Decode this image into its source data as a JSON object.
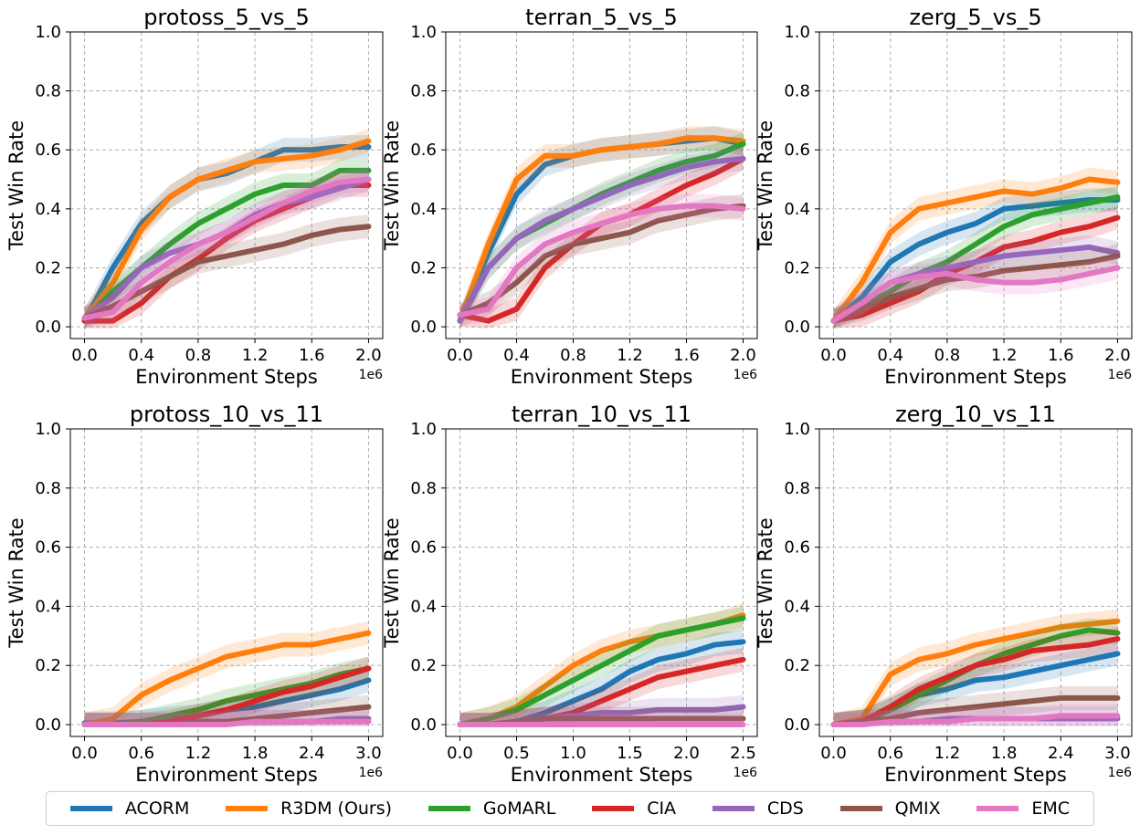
{
  "figure": {
    "colors": {
      "ACORM": "#1f77b4",
      "R3DM (Ours)": "#ff7f0e",
      "GoMARL": "#2ca02c",
      "CIA": "#d62728",
      "CDS": "#9467bd",
      "QMIX": "#8c564b",
      "EMC": "#e377c2"
    },
    "legend": [
      "ACORM",
      "R3DM (Ours)",
      "GoMARL",
      "CIA",
      "CDS",
      "QMIX",
      "EMC"
    ]
  },
  "chart_data": [
    {
      "type": "line",
      "title": "protoss_5_vs_5",
      "xlabel": "Environment Steps",
      "ylabel": "Test Win Rate",
      "x_multiplier": "1e6",
      "xlim": [
        -0.1,
        2.1
      ],
      "ylim": [
        -0.04,
        1.0
      ],
      "xticks": [
        0.0,
        0.4,
        0.8,
        1.2,
        1.6,
        2.0
      ],
      "xtick_labels": [
        "0.0",
        "0.4",
        "0.8",
        "1.2",
        "1.6",
        "2.0"
      ],
      "yticks": [
        0.0,
        0.2,
        0.4,
        0.6,
        0.8,
        1.0
      ],
      "ytick_labels": [
        "0.0",
        "0.2",
        "0.4",
        "0.6",
        "0.8",
        "1.0"
      ],
      "grid": true,
      "x": [
        0.0,
        0.2,
        0.4,
        0.6,
        0.8,
        1.0,
        1.2,
        1.4,
        1.6,
        1.8,
        2.0
      ],
      "series": [
        {
          "name": "ACORM",
          "values": [
            0.02,
            0.2,
            0.35,
            0.44,
            0.5,
            0.52,
            0.56,
            0.6,
            0.6,
            0.61,
            0.61
          ]
        },
        {
          "name": "R3DM (Ours)",
          "values": [
            0.03,
            0.15,
            0.33,
            0.44,
            0.5,
            0.53,
            0.56,
            0.57,
            0.58,
            0.6,
            0.63
          ]
        },
        {
          "name": "GoMARL",
          "values": [
            0.02,
            0.12,
            0.2,
            0.28,
            0.35,
            0.4,
            0.45,
            0.48,
            0.48,
            0.53,
            0.53
          ]
        },
        {
          "name": "CIA",
          "values": [
            0.02,
            0.02,
            0.08,
            0.17,
            0.23,
            0.3,
            0.36,
            0.4,
            0.44,
            0.48,
            0.48
          ]
        },
        {
          "name": "CDS",
          "values": [
            0.03,
            0.1,
            0.2,
            0.25,
            0.28,
            0.32,
            0.38,
            0.42,
            0.44,
            0.47,
            0.5
          ]
        },
        {
          "name": "QMIX",
          "values": [
            0.03,
            0.07,
            0.12,
            0.17,
            0.22,
            0.24,
            0.26,
            0.28,
            0.31,
            0.33,
            0.34
          ]
        },
        {
          "name": "EMC",
          "values": [
            0.03,
            0.05,
            0.15,
            0.22,
            0.28,
            0.32,
            0.37,
            0.42,
            0.46,
            0.49,
            0.5
          ]
        }
      ]
    },
    {
      "type": "line",
      "title": "terran_5_vs_5",
      "xlabel": "Environment Steps",
      "ylabel": "Test Win Rate",
      "x_multiplier": "1e6",
      "xlim": [
        -0.1,
        2.1
      ],
      "ylim": [
        -0.04,
        1.0
      ],
      "xticks": [
        0.0,
        0.4,
        0.8,
        1.2,
        1.6,
        2.0
      ],
      "xtick_labels": [
        "0.0",
        "0.4",
        "0.8",
        "1.2",
        "1.6",
        "2.0"
      ],
      "yticks": [
        0.0,
        0.2,
        0.4,
        0.6,
        0.8,
        1.0
      ],
      "ytick_labels": [
        "0.0",
        "0.2",
        "0.4",
        "0.6",
        "0.8",
        "1.0"
      ],
      "grid": true,
      "x": [
        0.0,
        0.2,
        0.4,
        0.6,
        0.8,
        1.0,
        1.2,
        1.4,
        1.6,
        1.8,
        2.0
      ],
      "series": [
        {
          "name": "ACORM",
          "values": [
            0.02,
            0.25,
            0.45,
            0.55,
            0.58,
            0.6,
            0.61,
            0.62,
            0.63,
            0.64,
            0.62
          ]
        },
        {
          "name": "R3DM (Ours)",
          "values": [
            0.02,
            0.28,
            0.5,
            0.58,
            0.58,
            0.6,
            0.61,
            0.62,
            0.64,
            0.64,
            0.63
          ]
        },
        {
          "name": "GoMARL",
          "values": [
            0.02,
            0.2,
            0.3,
            0.35,
            0.4,
            0.45,
            0.49,
            0.53,
            0.56,
            0.58,
            0.62
          ]
        },
        {
          "name": "CIA",
          "values": [
            0.04,
            0.02,
            0.06,
            0.2,
            0.28,
            0.35,
            0.38,
            0.43,
            0.48,
            0.52,
            0.57
          ]
        },
        {
          "name": "CDS",
          "values": [
            0.02,
            0.2,
            0.3,
            0.36,
            0.4,
            0.44,
            0.48,
            0.51,
            0.54,
            0.56,
            0.57
          ]
        },
        {
          "name": "QMIX",
          "values": [
            0.04,
            0.08,
            0.15,
            0.24,
            0.28,
            0.3,
            0.32,
            0.36,
            0.38,
            0.4,
            0.41
          ]
        },
        {
          "name": "EMC",
          "values": [
            0.04,
            0.06,
            0.2,
            0.28,
            0.32,
            0.35,
            0.38,
            0.4,
            0.41,
            0.41,
            0.4
          ]
        }
      ]
    },
    {
      "type": "line",
      "title": "zerg_5_vs_5",
      "xlabel": "Environment Steps",
      "ylabel": "Test Win Rate",
      "x_multiplier": "1e6",
      "xlim": [
        -0.1,
        2.1
      ],
      "ylim": [
        -0.04,
        1.0
      ],
      "xticks": [
        0.0,
        0.4,
        0.8,
        1.2,
        1.6,
        2.0
      ],
      "xtick_labels": [
        "0.0",
        "0.4",
        "0.8",
        "1.2",
        "1.6",
        "2.0"
      ],
      "yticks": [
        0.0,
        0.2,
        0.4,
        0.6,
        0.8,
        1.0
      ],
      "ytick_labels": [
        "0.0",
        "0.2",
        "0.4",
        "0.6",
        "0.8",
        "1.0"
      ],
      "grid": true,
      "x": [
        0.0,
        0.2,
        0.4,
        0.6,
        0.8,
        1.0,
        1.2,
        1.4,
        1.6,
        1.8,
        2.0
      ],
      "series": [
        {
          "name": "ACORM",
          "values": [
            0.02,
            0.1,
            0.22,
            0.28,
            0.32,
            0.35,
            0.4,
            0.41,
            0.42,
            0.43,
            0.43
          ]
        },
        {
          "name": "R3DM (Ours)",
          "values": [
            0.02,
            0.15,
            0.32,
            0.4,
            0.42,
            0.44,
            0.46,
            0.45,
            0.47,
            0.5,
            0.49
          ]
        },
        {
          "name": "GoMARL",
          "values": [
            0.02,
            0.07,
            0.12,
            0.18,
            0.22,
            0.28,
            0.34,
            0.38,
            0.4,
            0.42,
            0.44
          ]
        },
        {
          "name": "CIA",
          "values": [
            0.02,
            0.04,
            0.08,
            0.12,
            0.18,
            0.22,
            0.27,
            0.29,
            0.32,
            0.34,
            0.37
          ]
        },
        {
          "name": "CDS",
          "values": [
            0.02,
            0.08,
            0.15,
            0.18,
            0.2,
            0.22,
            0.24,
            0.25,
            0.26,
            0.27,
            0.25
          ]
        },
        {
          "name": "QMIX",
          "values": [
            0.02,
            0.06,
            0.1,
            0.13,
            0.16,
            0.17,
            0.19,
            0.2,
            0.21,
            0.22,
            0.24
          ]
        },
        {
          "name": "EMC",
          "values": [
            0.02,
            0.08,
            0.15,
            0.17,
            0.18,
            0.16,
            0.15,
            0.15,
            0.16,
            0.18,
            0.2
          ]
        }
      ]
    },
    {
      "type": "line",
      "title": "protoss_10_vs_11",
      "xlabel": "Environment Steps",
      "ylabel": "Test Win Rate",
      "x_multiplier": "1e6",
      "xlim": [
        -0.15,
        3.15
      ],
      "ylim": [
        -0.04,
        1.0
      ],
      "xticks": [
        0.0,
        0.6,
        1.2,
        1.8,
        2.4,
        3.0
      ],
      "xtick_labels": [
        "0.0",
        "0.6",
        "1.2",
        "1.8",
        "2.4",
        "3.0"
      ],
      "yticks": [
        0.0,
        0.2,
        0.4,
        0.6,
        0.8,
        1.0
      ],
      "ytick_labels": [
        "0.0",
        "0.2",
        "0.4",
        "0.6",
        "0.8",
        "1.0"
      ],
      "grid": true,
      "x": [
        0.0,
        0.3,
        0.6,
        0.9,
        1.2,
        1.5,
        1.8,
        2.1,
        2.4,
        2.7,
        3.0
      ],
      "series": [
        {
          "name": "ACORM",
          "values": [
            0.005,
            0.005,
            0.01,
            0.02,
            0.03,
            0.05,
            0.06,
            0.08,
            0.1,
            0.12,
            0.15
          ]
        },
        {
          "name": "R3DM (Ours)",
          "values": [
            0.0,
            0.02,
            0.1,
            0.15,
            0.19,
            0.23,
            0.25,
            0.27,
            0.27,
            0.29,
            0.31
          ]
        },
        {
          "name": "GoMARL",
          "values": [
            0.0,
            0.0,
            0.01,
            0.03,
            0.05,
            0.08,
            0.1,
            0.12,
            0.14,
            0.17,
            0.19
          ]
        },
        {
          "name": "CIA",
          "values": [
            0.0,
            0.0,
            0.0,
            0.01,
            0.03,
            0.05,
            0.08,
            0.11,
            0.13,
            0.16,
            0.19
          ]
        },
        {
          "name": "CDS",
          "values": [
            0.0,
            0.0,
            0.0,
            0.0,
            0.0,
            0.01,
            0.01,
            0.01,
            0.01,
            0.02,
            0.02
          ]
        },
        {
          "name": "QMIX",
          "values": [
            0.0,
            0.0,
            0.0,
            0.0,
            0.01,
            0.01,
            0.02,
            0.03,
            0.04,
            0.05,
            0.06
          ]
        },
        {
          "name": "EMC",
          "values": [
            0.0,
            0.0,
            0.0,
            0.0,
            0.0,
            0.0,
            0.01,
            0.01,
            0.01,
            0.01,
            0.01
          ]
        }
      ]
    },
    {
      "type": "line",
      "title": "terran_10_vs_11",
      "xlabel": "Environment Steps",
      "ylabel": "Test Win Rate",
      "x_multiplier": "1e6",
      "xlim": [
        -0.125,
        2.625
      ],
      "ylim": [
        -0.04,
        1.0
      ],
      "xticks": [
        0.0,
        0.5,
        1.0,
        1.5,
        2.0,
        2.5
      ],
      "xtick_labels": [
        "0.0",
        "0.5",
        "1.0",
        "1.5",
        "2.0",
        "2.5"
      ],
      "yticks": [
        0.0,
        0.2,
        0.4,
        0.6,
        0.8,
        1.0
      ],
      "ytick_labels": [
        "0.0",
        "0.2",
        "0.4",
        "0.6",
        "0.8",
        "1.0"
      ],
      "grid": true,
      "x": [
        0.0,
        0.25,
        0.5,
        0.75,
        1.0,
        1.25,
        1.5,
        1.75,
        2.0,
        2.25,
        2.5
      ],
      "series": [
        {
          "name": "ACORM",
          "values": [
            0.0,
            0.0,
            0.01,
            0.04,
            0.08,
            0.12,
            0.18,
            0.22,
            0.24,
            0.27,
            0.28
          ]
        },
        {
          "name": "R3DM (Ours)",
          "values": [
            0.0,
            0.02,
            0.06,
            0.13,
            0.2,
            0.25,
            0.28,
            0.3,
            0.32,
            0.34,
            0.37
          ]
        },
        {
          "name": "GoMARL",
          "values": [
            0.0,
            0.02,
            0.05,
            0.1,
            0.15,
            0.2,
            0.25,
            0.3,
            0.32,
            0.34,
            0.36
          ]
        },
        {
          "name": "CIA",
          "values": [
            0.0,
            0.0,
            0.01,
            0.02,
            0.04,
            0.08,
            0.12,
            0.16,
            0.18,
            0.2,
            0.22
          ]
        },
        {
          "name": "CDS",
          "values": [
            0.0,
            0.0,
            0.01,
            0.02,
            0.03,
            0.04,
            0.04,
            0.05,
            0.05,
            0.05,
            0.06
          ]
        },
        {
          "name": "QMIX",
          "values": [
            0.0,
            0.0,
            0.01,
            0.02,
            0.02,
            0.02,
            0.02,
            0.02,
            0.02,
            0.02,
            0.02
          ]
        },
        {
          "name": "EMC",
          "values": [
            0.0,
            0.0,
            0.0,
            0.0,
            0.0,
            0.0,
            0.0,
            0.0,
            0.0,
            0.0,
            0.0
          ]
        }
      ]
    },
    {
      "type": "line",
      "title": "zerg_10_vs_11",
      "xlabel": "Environment Steps",
      "ylabel": "Test Win Rate",
      "x_multiplier": "1e6",
      "xlim": [
        -0.15,
        3.15
      ],
      "ylim": [
        -0.04,
        1.0
      ],
      "xticks": [
        0.0,
        0.6,
        1.2,
        1.8,
        2.4,
        3.0
      ],
      "xtick_labels": [
        "0.0",
        "0.6",
        "1.2",
        "1.8",
        "2.4",
        "3.0"
      ],
      "yticks": [
        0.0,
        0.2,
        0.4,
        0.6,
        0.8,
        1.0
      ],
      "ytick_labels": [
        "0.0",
        "0.2",
        "0.4",
        "0.6",
        "0.8",
        "1.0"
      ],
      "grid": true,
      "x": [
        0.0,
        0.3,
        0.6,
        0.9,
        1.2,
        1.5,
        1.8,
        2.1,
        2.4,
        2.7,
        3.0
      ],
      "series": [
        {
          "name": "ACORM",
          "values": [
            0.0,
            0.01,
            0.05,
            0.1,
            0.12,
            0.15,
            0.16,
            0.18,
            0.2,
            0.22,
            0.24
          ]
        },
        {
          "name": "R3DM (Ours)",
          "values": [
            0.0,
            0.02,
            0.17,
            0.22,
            0.24,
            0.27,
            0.29,
            0.31,
            0.33,
            0.34,
            0.35
          ]
        },
        {
          "name": "GoMARL",
          "values": [
            0.0,
            0.01,
            0.05,
            0.1,
            0.15,
            0.2,
            0.24,
            0.27,
            0.3,
            0.32,
            0.31
          ]
        },
        {
          "name": "CIA",
          "values": [
            0.0,
            0.01,
            0.06,
            0.12,
            0.16,
            0.2,
            0.22,
            0.25,
            0.26,
            0.27,
            0.29
          ]
        },
        {
          "name": "CDS",
          "values": [
            0.0,
            0.0,
            0.01,
            0.01,
            0.02,
            0.02,
            0.02,
            0.02,
            0.02,
            0.02,
            0.02
          ]
        },
        {
          "name": "QMIX",
          "values": [
            0.0,
            0.01,
            0.02,
            0.04,
            0.05,
            0.06,
            0.07,
            0.08,
            0.09,
            0.09,
            0.09
          ]
        },
        {
          "name": "EMC",
          "values": [
            0.0,
            0.0,
            0.01,
            0.01,
            0.01,
            0.02,
            0.02,
            0.02,
            0.03,
            0.03,
            0.03
          ]
        }
      ]
    }
  ]
}
